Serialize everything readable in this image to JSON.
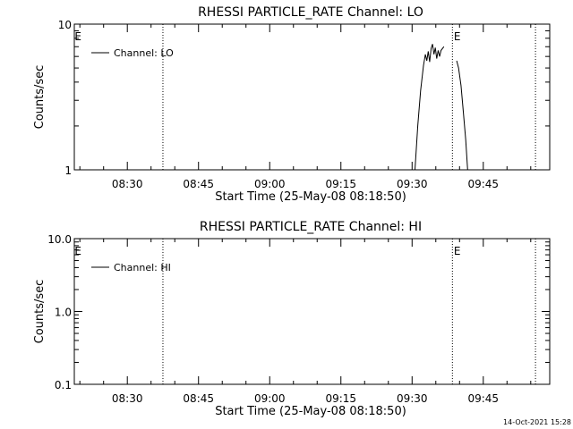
{
  "footer": {
    "timestamp": "14-Oct-2021 15:28"
  },
  "chart_data": [
    {
      "type": "line",
      "title": "RHESSI PARTICLE_RATE Channel: LO",
      "xlabel": "Start Time (25-May-08 08:18:50)",
      "ylabel": "Counts/sec",
      "yscale": "log",
      "ylim": [
        1,
        10
      ],
      "xlim_minutes": [
        18.83,
        119.0
      ],
      "yticks": [
        {
          "v": 1,
          "label": "1"
        },
        {
          "v": 10,
          "label": "10"
        }
      ],
      "xticks": [
        {
          "m": 30,
          "label": "08:30"
        },
        {
          "m": 45,
          "label": "08:45"
        },
        {
          "m": 60,
          "label": "09:00"
        },
        {
          "m": 75,
          "label": "09:15"
        },
        {
          "m": 90,
          "label": "09:30"
        },
        {
          "m": 105,
          "label": "09:45"
        }
      ],
      "vlines_minutes": [
        37.5,
        98.5,
        116.0
      ],
      "markers": [
        {
          "m": 18.9,
          "label": "E"
        },
        {
          "m": 98.8,
          "label": "E"
        }
      ],
      "legend": {
        "label": "Channel: LO",
        "placement": "top-left"
      },
      "series": [
        {
          "segments": [
            [
              [
                90.6,
                1.0
              ],
              [
                91.2,
                2.0
              ],
              [
                91.8,
                3.5
              ],
              [
                92.4,
                5.2
              ],
              [
                92.8,
                6.2
              ],
              [
                93.1,
                5.6
              ],
              [
                93.4,
                6.5
              ],
              [
                93.7,
                5.5
              ],
              [
                94.0,
                6.8
              ],
              [
                94.3,
                7.3
              ],
              [
                94.6,
                6.2
              ],
              [
                94.9,
                6.9
              ],
              [
                95.2,
                5.8
              ],
              [
                95.5,
                6.6
              ],
              [
                95.8,
                6.0
              ],
              [
                96.1,
                6.6
              ],
              [
                96.4,
                6.8
              ],
              [
                96.7,
                7.0
              ]
            ],
            [
              [
                99.4,
                5.6
              ],
              [
                99.8,
                5.0
              ],
              [
                100.3,
                3.8
              ],
              [
                100.8,
                2.5
              ],
              [
                101.3,
                1.6
              ],
              [
                101.7,
                1.0
              ]
            ]
          ]
        }
      ]
    },
    {
      "type": "line",
      "title": "RHESSI PARTICLE_RATE Channel: HI",
      "xlabel": "Start Time (25-May-08 08:18:50)",
      "ylabel": "Counts/sec",
      "yscale": "log",
      "ylim": [
        0.1,
        10
      ],
      "xlim_minutes": [
        18.83,
        119.0
      ],
      "yticks": [
        {
          "v": 0.1,
          "label": "0.1"
        },
        {
          "v": 1,
          "label": "1.0"
        },
        {
          "v": 10,
          "label": "10.0"
        }
      ],
      "xticks": [
        {
          "m": 30,
          "label": "08:30"
        },
        {
          "m": 45,
          "label": "08:45"
        },
        {
          "m": 60,
          "label": "09:00"
        },
        {
          "m": 75,
          "label": "09:15"
        },
        {
          "m": 90,
          "label": "09:30"
        },
        {
          "m": 105,
          "label": "09:45"
        }
      ],
      "vlines_minutes": [
        37.5,
        98.5,
        116.0
      ],
      "markers": [
        {
          "m": 18.9,
          "label": "E"
        },
        {
          "m": 98.8,
          "label": "E"
        }
      ],
      "legend": {
        "label": "Channel: HI",
        "placement": "top-left"
      },
      "series": [
        {
          "segments": []
        }
      ]
    }
  ]
}
